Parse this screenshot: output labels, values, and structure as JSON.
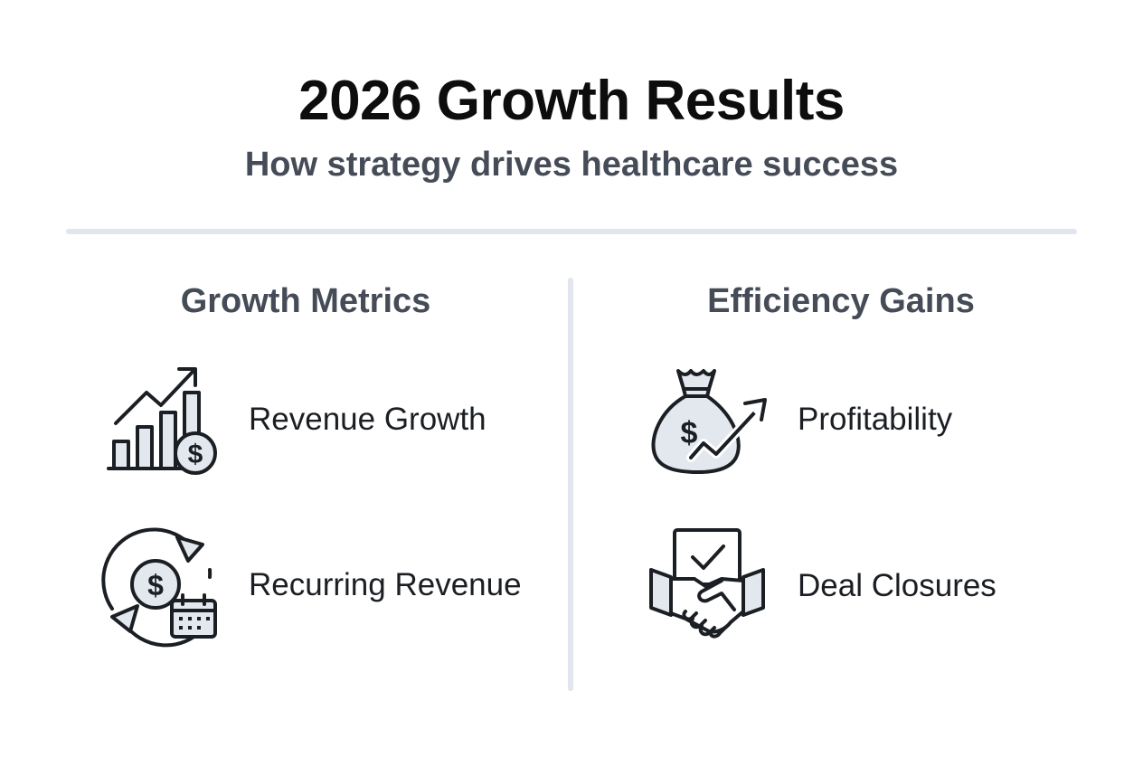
{
  "header": {
    "title": "2026 Growth Results",
    "subtitle": "How strategy drives healthcare success"
  },
  "columns": {
    "left": {
      "heading": "Growth Metrics",
      "items": [
        {
          "label": "Revenue Growth",
          "icon": "bar-chart-dollar-icon"
        },
        {
          "label": "Recurring Revenue",
          "icon": "recurring-dollar-calendar-icon"
        }
      ]
    },
    "right": {
      "heading": "Efficiency Gains",
      "items": [
        {
          "label": "Profitability",
          "icon": "money-bag-arrow-icon"
        },
        {
          "label": "Deal Closures",
          "icon": "handshake-check-icon"
        }
      ]
    }
  },
  "colors": {
    "title": "#0d0d0d",
    "subtitle": "#454c57",
    "divider": "#e1e6ee",
    "icon_stroke": "#1b1f24",
    "icon_fill": "#e3e8ef"
  }
}
